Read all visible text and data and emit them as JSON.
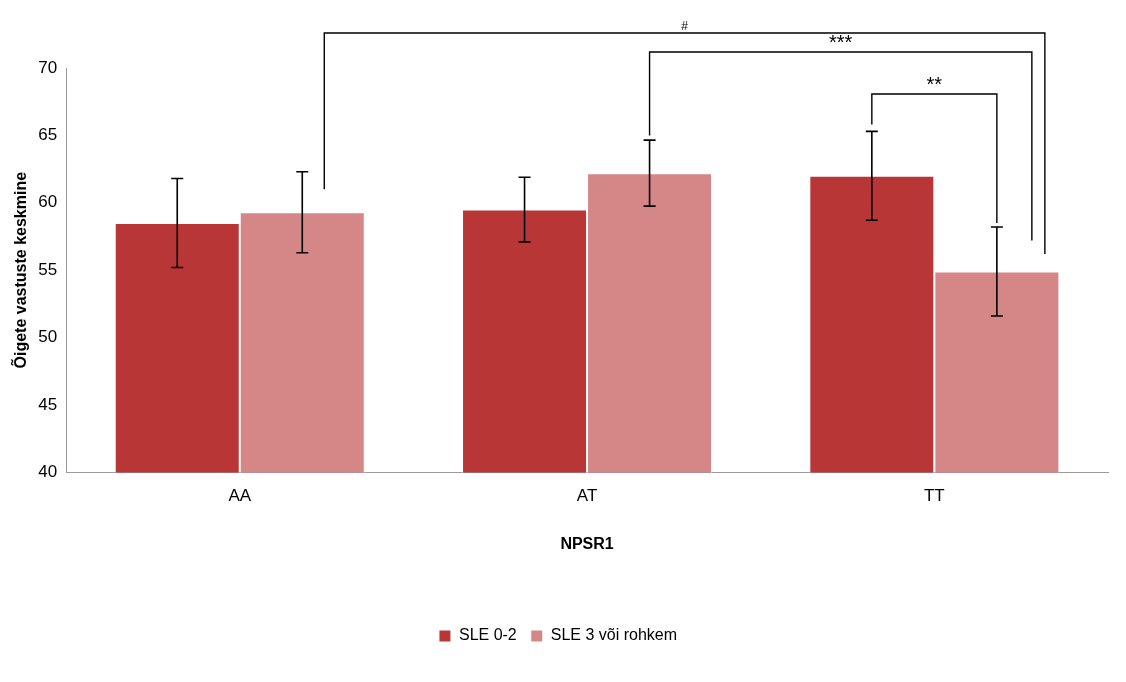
{
  "chart_data": {
    "type": "bar",
    "xlabel": "NPSR1",
    "ylabel": "Õigete vastuste keskmine",
    "categories": [
      "AA",
      "AT",
      "TT"
    ],
    "series": [
      {
        "name": "SLE 0-2",
        "color": "#b83636",
        "values": [
          58.5,
          59.5,
          62.0
        ],
        "errors": [
          3.3,
          2.4,
          3.3
        ]
      },
      {
        "name": "SLE 3 või rohkem",
        "color": "#d58686",
        "values": [
          59.3,
          62.2,
          54.9
        ],
        "errors": [
          3.0,
          2.45,
          3.3
        ]
      }
    ],
    "ylim": [
      40,
      70
    ],
    "yticks": [
      40,
      45,
      50,
      55,
      60,
      65,
      70
    ],
    "grid": false,
    "legend": "bottom",
    "annotations": [
      "#",
      "***",
      "**"
    ]
  }
}
